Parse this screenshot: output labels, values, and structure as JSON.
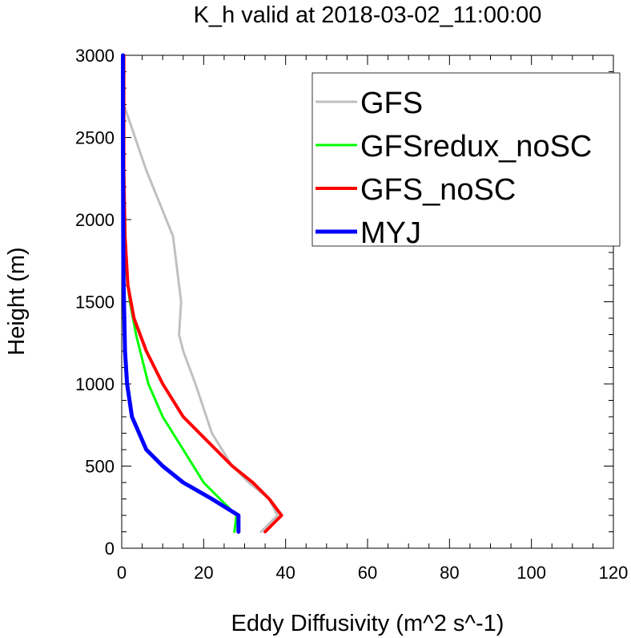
{
  "chart_data": {
    "type": "line",
    "title": "K_h valid at 2018-03-02_11:00:00",
    "xlabel": "Eddy Diffusivity (m^2 s^-1)",
    "ylabel": "Height (m)",
    "xlim": [
      0,
      120
    ],
    "ylim": [
      0,
      3000
    ],
    "xticks": [
      0,
      20,
      40,
      60,
      80,
      100,
      120
    ],
    "yticks": [
      0,
      500,
      1000,
      1500,
      2000,
      2500,
      3000
    ],
    "grid": false,
    "legend_position": "top-right",
    "series": [
      {
        "name": "GFS",
        "color": "#c0c0c0",
        "points": [
          [
            34,
            100
          ],
          [
            38,
            200
          ],
          [
            36,
            300
          ],
          [
            31,
            400
          ],
          [
            27,
            500
          ],
          [
            22,
            700
          ],
          [
            18,
            1000
          ],
          [
            15,
            1200
          ],
          [
            14,
            1300
          ],
          [
            14.5,
            1500
          ],
          [
            13.5,
            1700
          ],
          [
            12.5,
            1900
          ],
          [
            6,
            2300
          ],
          [
            0.5,
            2700
          ],
          [
            0.5,
            3000
          ]
        ]
      },
      {
        "name": "GFSredux_noSC",
        "color": "#00ff00",
        "points": [
          [
            27.5,
            100
          ],
          [
            28,
            200
          ],
          [
            20,
            400
          ],
          [
            15,
            600
          ],
          [
            10,
            800
          ],
          [
            6.5,
            1000
          ],
          [
            3.5,
            1300
          ],
          [
            2,
            1500
          ],
          [
            1,
            1700
          ],
          [
            0.6,
            2000
          ],
          [
            0.3,
            2700
          ],
          [
            0.3,
            3000
          ]
        ]
      },
      {
        "name": "GFS_noSC",
        "color": "#ff0000",
        "points": [
          [
            35,
            100
          ],
          [
            39,
            200
          ],
          [
            36,
            300
          ],
          [
            32,
            400
          ],
          [
            27,
            500
          ],
          [
            15,
            800
          ],
          [
            10,
            1000
          ],
          [
            6,
            1200
          ],
          [
            3,
            1400
          ],
          [
            1.5,
            1600
          ],
          [
            0.8,
            1900
          ],
          [
            0.5,
            2300
          ],
          [
            0.5,
            3000
          ]
        ]
      },
      {
        "name": "MYJ",
        "color": "#0000ff",
        "points": [
          [
            28.5,
            100
          ],
          [
            28.5,
            200
          ],
          [
            22,
            300
          ],
          [
            15,
            400
          ],
          [
            10,
            500
          ],
          [
            6,
            600
          ],
          [
            2.5,
            800
          ],
          [
            1.3,
            1000
          ],
          [
            0.8,
            1200
          ],
          [
            0.4,
            1700
          ],
          [
            0.3,
            2500
          ],
          [
            0.3,
            3000
          ]
        ]
      }
    ]
  }
}
